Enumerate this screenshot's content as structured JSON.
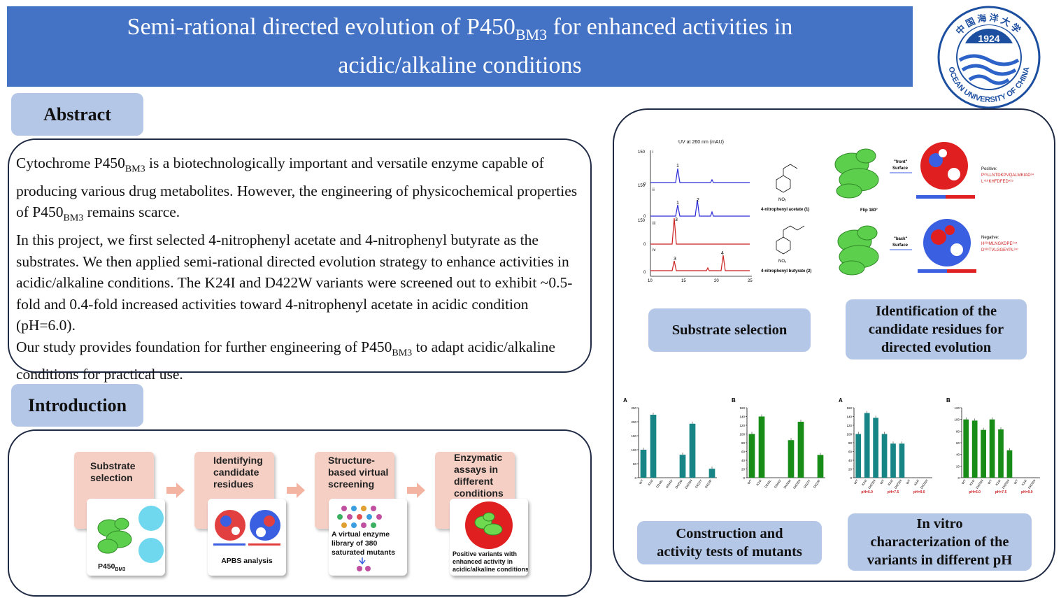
{
  "header": {
    "title_part1": "Semi-rational directed evolution of P450",
    "title_sub": "BM3",
    "title_part2": " for enhanced activities in",
    "title_line2": "acidic/alkaline conditions"
  },
  "logo": {
    "year": "1924",
    "text_cn": "中国海洋大学",
    "text_en": "OCEAN UNIVERSITY OF CHINA",
    "colors": {
      "primary": "#1d4fa0",
      "wave": "#2d63c8"
    }
  },
  "sections": {
    "abstract_label": "Abstract",
    "introduction_label": "Introduction"
  },
  "abstract": {
    "p1_a": "Cytochrome P450",
    "p1_sub1": "BM3",
    "p1_b": " is a biotechnologically important and versatile enzyme capable of producing various drug metabolites. However, the engineering of physicochemical properties of P450",
    "p1_sub2": "BM3",
    "p1_c": " remains scarce.",
    "p2": "In this project, we first selected 4-nitrophenyl acetate and 4-nitrophenyl butyrate as the substrates. We then applied semi-rational directed evolution strategy to enhance activities in acidic/alkaline conditions. The K24I and D422W variants were screened out to exhibit ~0.5-fold and 0.4-fold increased activities toward 4-nitrophenyl acetate in acidic condition (pH=6.0).",
    "p3_a": "Our study provides foundation for further engineering of P450",
    "p3_sub": "BM3",
    "p3_b": " to adapt acidic/alkaline conditions for practical use."
  },
  "intro_flow": [
    {
      "title_l1": "Substrate",
      "title_l2": "selection",
      "title_l3": "",
      "caption_a": "P450",
      "caption_sub": "BM3",
      "caption_l2": "",
      "caption_l3": ""
    },
    {
      "title_l1": "Identifying",
      "title_l2": "candidate",
      "title_l3": "residues",
      "caption_a": "APBS analysis",
      "caption_sub": "",
      "caption_l2": "",
      "caption_l3": ""
    },
    {
      "title_l1": "Structure-",
      "title_l2": "based virtual",
      "title_l3": "screening",
      "caption_a": "A virtual enzyme",
      "caption_sub": "",
      "caption_l2": "library of 380",
      "caption_l3": "saturated mutants"
    },
    {
      "title_l1": "Enzymatic",
      "title_l2": "assays in",
      "title_l3": "different",
      "title_l4": "conditions",
      "caption_a": "Positive variants with",
      "caption_sub": "",
      "caption_l2": "enhanced activity in",
      "caption_l3": "acidic/alkaline conditions"
    }
  ],
  "hplc": {
    "title": "UV at 260 nm (mAU)",
    "panels": [
      "i",
      "ii",
      "iii",
      "iv"
    ],
    "y_labels": [
      "150",
      "0",
      "150",
      "0",
      "150",
      "0",
      "0"
    ],
    "x_ticks": [
      "10",
      "15",
      "20",
      "25"
    ],
    "peak_labels": [
      "1",
      "1",
      "2",
      "3",
      "3",
      "4"
    ],
    "compound1": "4-nitrophenyl acetate (1)",
    "compound2": "4-nitrophenyl butyrate (2)",
    "no2": "NO₂",
    "colors": {
      "blue": "#2b2bd6",
      "red": "#cc1f1f"
    }
  },
  "structure": {
    "front_l1": "\"front\"",
    "front_l2": "Surface",
    "back_l1": "\"back\"",
    "back_l2": "Surface",
    "flip": "Flip 180°",
    "positive_label": "Positive:",
    "positive_seq1": "P²⁹LLNTDKPVQALMKIAD³⁴",
    "positive_seq2": "L⁴¹⁸KHFDFED⁴²⁵",
    "negative_label": "Negative:",
    "negative_seq1": "H²³⁶MLNGKDPE²⁴⁴",
    "negative_seq2": "D³³⁶TVLGGEYPL³⁴⁷"
  },
  "panels": {
    "substrate_selection": "Substrate selection",
    "identification_l1": "Identification of the",
    "identification_l2": "candidate residues for",
    "identification_l3": "directed evolution",
    "construction_l1": "Construction and",
    "construction_l2": "activity tests of mutants",
    "invitro_l1": "In vitro",
    "invitro_l2": "characterization of the",
    "invitro_l3": "variants in different pH"
  },
  "chart_data": [
    {
      "type": "bar",
      "panel": "A",
      "categories": [
        "WT",
        "K24I",
        "D244L",
        "D244V",
        "D422M",
        "D422W",
        "D422Y",
        "D422P"
      ],
      "values": [
        100,
        225,
        0,
        0,
        82,
        193,
        0,
        32
      ],
      "color": "#178585",
      "ylim": [
        0,
        250
      ]
    },
    {
      "type": "bar",
      "panel": "B",
      "categories": [
        "WT",
        "K24I",
        "D244L",
        "D244V",
        "D422M",
        "D422W",
        "D422Y",
        "D422P"
      ],
      "values": [
        100,
        140,
        0,
        0,
        86,
        128,
        0,
        52
      ],
      "color": "#178c17",
      "ylim": [
        0,
        160
      ]
    },
    {
      "type": "bar",
      "panel": "A",
      "categories": [
        "WT",
        "K24I",
        "D422W",
        "WT",
        "K24I",
        "D422W",
        "WT",
        "K24I",
        "D422W"
      ],
      "values": [
        100,
        148,
        137,
        100,
        78,
        78,
        0,
        0,
        0
      ],
      "groups": [
        "pH=6.0",
        "pH=7.5",
        "pH=9.0"
      ],
      "color": "#178585",
      "ylim": [
        0,
        160
      ]
    },
    {
      "type": "bar",
      "panel": "B",
      "categories": [
        "WT",
        "K24I",
        "D422W",
        "WT",
        "K24I",
        "D422W",
        "WT",
        "K24I",
        "D422W"
      ],
      "values": [
        100,
        98,
        82,
        100,
        83,
        47,
        0,
        0,
        0
      ],
      "groups": [
        "pH=6.0",
        "pH=7.5",
        "pH=9.0"
      ],
      "color": "#178c17",
      "ylim": [
        0,
        120
      ]
    }
  ]
}
